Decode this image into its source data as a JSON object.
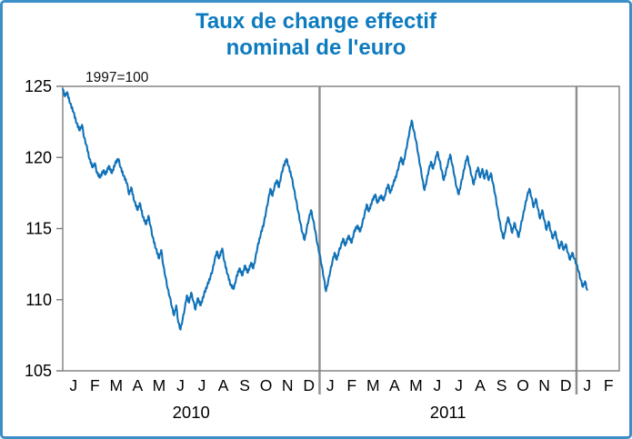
{
  "header": {
    "line1": "Taux de change effectif",
    "line2": "nominal de l'euro"
  },
  "chart_data": {
    "type": "line",
    "title": "Taux de change effectif nominal de l'euro",
    "unit": "1997=100",
    "ylim": [
      105,
      125
    ],
    "yticks": [
      125,
      120,
      115,
      110,
      105
    ],
    "x_range_months": [
      0,
      26
    ],
    "month_tick_labels": [
      "J",
      "F",
      "M",
      "A",
      "M",
      "J",
      "J",
      "A",
      "S",
      "O",
      "N",
      "D",
      "J",
      "F",
      "M",
      "A",
      "M",
      "J",
      "J",
      "A",
      "S",
      "O",
      "N",
      "D",
      "J",
      "F"
    ],
    "year_labels": [
      {
        "label": "2010",
        "center_month": 6
      },
      {
        "label": "2011",
        "center_month": 18
      }
    ],
    "year_divider_months": [
      12,
      24
    ],
    "line_color": "#1272b8",
    "colors": {
      "frame": "#7d7d7d",
      "divider": "#8f8f8f",
      "title": "#0d7bbe",
      "border": "#3b8ec6",
      "axis_text": "#000000"
    },
    "legend": "none",
    "grid": "off",
    "series": [
      {
        "name": "Taux de change effectif nominal de l'euro (1997=100)",
        "points": [
          [
            0,
            124.8
          ],
          [
            0.1,
            124.3
          ],
          [
            0.2,
            124.6
          ],
          [
            0.35,
            123.8
          ],
          [
            0.5,
            123.2
          ],
          [
            0.65,
            122.4
          ],
          [
            0.8,
            121.9
          ],
          [
            0.9,
            122.3
          ],
          [
            1.0,
            121.4
          ],
          [
            1.1,
            120.9
          ],
          [
            1.25,
            119.9
          ],
          [
            1.4,
            119.3
          ],
          [
            1.5,
            119.6
          ],
          [
            1.6,
            118.9
          ],
          [
            1.75,
            118.6
          ],
          [
            1.9,
            119.1
          ],
          [
            2.0,
            118.8
          ],
          [
            2.15,
            119.4
          ],
          [
            2.3,
            118.9
          ],
          [
            2.45,
            119.6
          ],
          [
            2.6,
            119.9
          ],
          [
            2.7,
            119.3
          ],
          [
            2.85,
            118.7
          ],
          [
            3.0,
            118.2
          ],
          [
            3.1,
            117.4
          ],
          [
            3.2,
            117.9
          ],
          [
            3.35,
            116.9
          ],
          [
            3.5,
            116.3
          ],
          [
            3.6,
            116.8
          ],
          [
            3.75,
            115.8
          ],
          [
            3.9,
            115.3
          ],
          [
            4.0,
            115.9
          ],
          [
            4.1,
            115.2
          ],
          [
            4.2,
            114.4
          ],
          [
            4.35,
            113.6
          ],
          [
            4.5,
            112.9
          ],
          [
            4.6,
            113.5
          ],
          [
            4.7,
            112.4
          ],
          [
            4.8,
            111.6
          ],
          [
            4.9,
            110.8
          ],
          [
            5.0,
            110.2
          ],
          [
            5.1,
            109.5
          ],
          [
            5.2,
            108.9
          ],
          [
            5.3,
            109.6
          ],
          [
            5.4,
            108.4
          ],
          [
            5.5,
            107.9
          ],
          [
            5.6,
            108.6
          ],
          [
            5.7,
            109.4
          ],
          [
            5.8,
            110.3
          ],
          [
            5.9,
            109.8
          ],
          [
            6.0,
            110.5
          ],
          [
            6.1,
            109.9
          ],
          [
            6.2,
            109.3
          ],
          [
            6.3,
            110.1
          ],
          [
            6.45,
            109.6
          ],
          [
            6.6,
            110.4
          ],
          [
            6.75,
            111.0
          ],
          [
            6.9,
            111.6
          ],
          [
            7.0,
            112.1
          ],
          [
            7.1,
            112.8
          ],
          [
            7.2,
            113.4
          ],
          [
            7.3,
            112.9
          ],
          [
            7.45,
            113.6
          ],
          [
            7.55,
            112.7
          ],
          [
            7.7,
            111.8
          ],
          [
            7.85,
            111.0
          ],
          [
            8.0,
            110.8
          ],
          [
            8.1,
            111.5
          ],
          [
            8.25,
            112.2
          ],
          [
            8.4,
            111.7
          ],
          [
            8.5,
            112.4
          ],
          [
            8.65,
            111.9
          ],
          [
            8.8,
            112.6
          ],
          [
            8.9,
            112.2
          ],
          [
            9.0,
            112.9
          ],
          [
            9.1,
            113.7
          ],
          [
            9.25,
            114.6
          ],
          [
            9.4,
            115.4
          ],
          [
            9.5,
            116.2
          ],
          [
            9.6,
            117.0
          ],
          [
            9.7,
            117.8
          ],
          [
            9.8,
            117.3
          ],
          [
            9.9,
            118.0
          ],
          [
            10.0,
            118.4
          ],
          [
            10.1,
            117.9
          ],
          [
            10.2,
            118.7
          ],
          [
            10.3,
            119.3
          ],
          [
            10.45,
            119.9
          ],
          [
            10.55,
            119.4
          ],
          [
            10.7,
            118.6
          ],
          [
            10.8,
            117.8
          ],
          [
            10.9,
            117.0
          ],
          [
            11.0,
            116.2
          ],
          [
            11.1,
            115.4
          ],
          [
            11.2,
            114.7
          ],
          [
            11.3,
            114.2
          ],
          [
            11.4,
            115.0
          ],
          [
            11.5,
            115.7
          ],
          [
            11.6,
            116.3
          ],
          [
            11.7,
            115.6
          ],
          [
            11.8,
            114.8
          ],
          [
            11.9,
            113.9
          ],
          [
            12.0,
            113.2
          ],
          [
            12.1,
            112.4
          ],
          [
            12.2,
            111.5
          ],
          [
            12.3,
            110.6
          ],
          [
            12.4,
            111.3
          ],
          [
            12.5,
            112.0
          ],
          [
            12.6,
            112.7
          ],
          [
            12.7,
            113.3
          ],
          [
            12.8,
            112.8
          ],
          [
            12.9,
            113.4
          ],
          [
            13.0,
            113.8
          ],
          [
            13.1,
            114.3
          ],
          [
            13.2,
            113.8
          ],
          [
            13.35,
            114.5
          ],
          [
            13.5,
            114.0
          ],
          [
            13.6,
            114.7
          ],
          [
            13.75,
            115.2
          ],
          [
            13.9,
            114.8
          ],
          [
            14.0,
            115.4
          ],
          [
            14.1,
            116.0
          ],
          [
            14.2,
            116.7
          ],
          [
            14.3,
            116.2
          ],
          [
            14.45,
            116.9
          ],
          [
            14.6,
            117.4
          ],
          [
            14.7,
            116.8
          ],
          [
            14.85,
            117.3
          ],
          [
            15.0,
            117.0
          ],
          [
            15.1,
            117.6
          ],
          [
            15.2,
            118.1
          ],
          [
            15.3,
            117.5
          ],
          [
            15.45,
            118.2
          ],
          [
            15.6,
            118.8
          ],
          [
            15.7,
            119.4
          ],
          [
            15.8,
            120.0
          ],
          [
            15.9,
            119.5
          ],
          [
            16.0,
            120.2
          ],
          [
            16.1,
            121.0
          ],
          [
            16.2,
            121.8
          ],
          [
            16.3,
            122.6
          ],
          [
            16.4,
            121.9
          ],
          [
            16.5,
            121.2
          ],
          [
            16.6,
            120.3
          ],
          [
            16.7,
            119.4
          ],
          [
            16.8,
            118.5
          ],
          [
            16.9,
            117.7
          ],
          [
            17.0,
            118.4
          ],
          [
            17.1,
            119.1
          ],
          [
            17.2,
            119.7
          ],
          [
            17.3,
            119.2
          ],
          [
            17.4,
            119.8
          ],
          [
            17.5,
            120.4
          ],
          [
            17.6,
            119.8
          ],
          [
            17.7,
            119.1
          ],
          [
            17.8,
            118.4
          ],
          [
            17.9,
            119.0
          ],
          [
            18.0,
            119.6
          ],
          [
            18.1,
            120.2
          ],
          [
            18.2,
            119.5
          ],
          [
            18.3,
            118.7
          ],
          [
            18.4,
            117.9
          ],
          [
            18.5,
            117.4
          ],
          [
            18.6,
            118.1
          ],
          [
            18.7,
            118.8
          ],
          [
            18.8,
            119.5
          ],
          [
            18.9,
            120.1
          ],
          [
            19.0,
            119.4
          ],
          [
            19.1,
            118.7
          ],
          [
            19.2,
            118.1
          ],
          [
            19.3,
            118.8
          ],
          [
            19.4,
            119.3
          ],
          [
            19.5,
            118.6
          ],
          [
            19.6,
            119.2
          ],
          [
            19.7,
            118.5
          ],
          [
            19.8,
            119.1
          ],
          [
            19.9,
            118.4
          ],
          [
            20.0,
            118.9
          ],
          [
            20.1,
            118.2
          ],
          [
            20.2,
            117.4
          ],
          [
            20.3,
            116.5
          ],
          [
            20.4,
            115.6
          ],
          [
            20.5,
            114.8
          ],
          [
            20.6,
            114.3
          ],
          [
            20.7,
            115.1
          ],
          [
            20.8,
            115.8
          ],
          [
            20.9,
            115.3
          ],
          [
            21.0,
            114.7
          ],
          [
            21.1,
            115.4
          ],
          [
            21.2,
            114.9
          ],
          [
            21.3,
            114.4
          ],
          [
            21.4,
            115.2
          ],
          [
            21.5,
            115.9
          ],
          [
            21.6,
            116.6
          ],
          [
            21.7,
            117.3
          ],
          [
            21.8,
            117.8
          ],
          [
            21.9,
            117.2
          ],
          [
            22.0,
            116.5
          ],
          [
            22.1,
            117.1
          ],
          [
            22.2,
            116.4
          ],
          [
            22.3,
            115.7
          ],
          [
            22.4,
            116.3
          ],
          [
            22.5,
            115.6
          ],
          [
            22.6,
            114.9
          ],
          [
            22.7,
            115.5
          ],
          [
            22.8,
            114.8
          ],
          [
            22.9,
            114.3
          ],
          [
            23.0,
            114.8
          ],
          [
            23.1,
            114.2
          ],
          [
            23.2,
            113.6
          ],
          [
            23.3,
            114.1
          ],
          [
            23.4,
            113.5
          ],
          [
            23.5,
            113.9
          ],
          [
            23.6,
            113.3
          ],
          [
            23.7,
            112.8
          ],
          [
            23.8,
            113.3
          ],
          [
            23.9,
            112.9
          ],
          [
            24.0,
            112.5
          ],
          [
            24.1,
            112.0
          ],
          [
            24.2,
            111.4
          ],
          [
            24.3,
            110.9
          ],
          [
            24.4,
            111.3
          ],
          [
            24.5,
            110.7
          ]
        ]
      }
    ]
  }
}
